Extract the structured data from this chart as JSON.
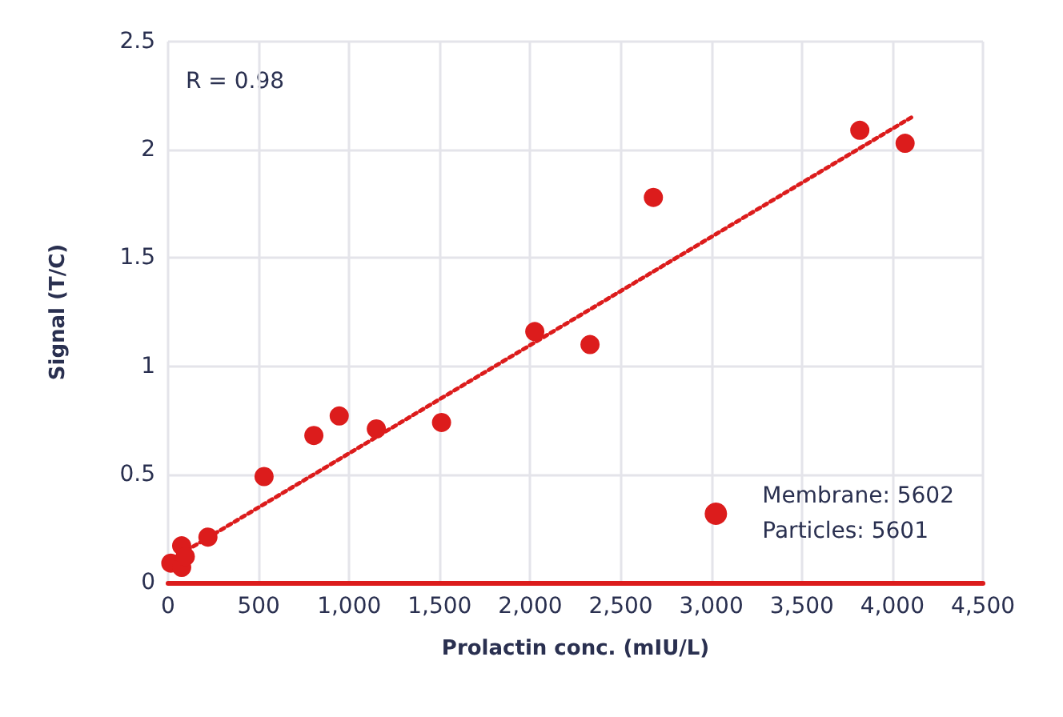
{
  "chart_data": {
    "type": "scatter",
    "xlabel": "Prolactin conc. (mIU/L)",
    "ylabel": "Signal (T/C)",
    "annotations": [
      "R = 0.98"
    ],
    "xlim": [
      0,
      4500
    ],
    "xticks": [
      0,
      500,
      {
        "value": 1000,
        "label": "1,000"
      },
      {
        "value": 1500,
        "label": "1,500"
      },
      {
        "value": 2000,
        "label": "2,000"
      },
      {
        "value": 2500,
        "label": "2,500"
      },
      {
        "value": 3000,
        "label": "3,000"
      },
      {
        "value": 3500,
        "label": "3,500"
      },
      {
        "value": 4000,
        "label": "4,000"
      },
      {
        "value": 4500,
        "label": "4,500"
      }
    ],
    "ylim": [
      0,
      2.5
    ],
    "yticks": [
      0,
      0.5,
      1,
      1.5,
      2,
      2.5
    ],
    "grid": true,
    "legend": "bottom right",
    "marker": "circle",
    "series": [
      {
        "name": "Membrane: 5602\nParticles: 5601",
        "color": "#dc1c1c",
        "x": [
          15,
          75,
          75,
          95,
          220,
          530,
          805,
          945,
          1150,
          1510,
          2025,
          2330,
          2680,
          3820,
          4070
        ],
        "values": [
          0.09,
          0.17,
          0.07,
          0.12,
          0.21,
          0.49,
          0.68,
          0.77,
          0.71,
          0.74,
          1.16,
          1.1,
          1.78,
          2.09,
          2.03
        ]
      },
      {
        "type": "line",
        "color": "#dc1c1c",
        "line_style": "dotted",
        "marker": "none",
        "x": [
          25,
          4105
        ],
        "values": [
          0.11,
          2.15
        ]
      }
    ]
  }
}
